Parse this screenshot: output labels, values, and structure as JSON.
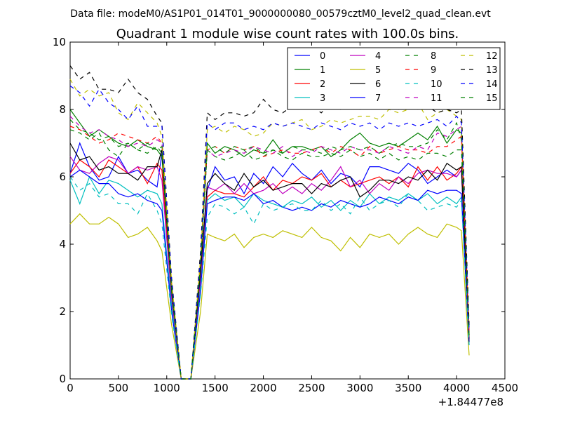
{
  "figure": {
    "suptitle": "Data file: modeM0/AS1P01_014T01_9000000080_00579cztM0_level2_quad_clean.evt"
  },
  "chart_data": {
    "type": "line",
    "title": "Quadrant 1 module wise count rates with 100.0s bins.",
    "xlabel": "",
    "ylabel": "",
    "xlim": [
      0,
      4500
    ],
    "ylim": [
      0,
      10
    ],
    "x_offset_label": "+1.84477e8",
    "xticks": [
      "0",
      "500",
      "1000",
      "1500",
      "2000",
      "2500",
      "3000",
      "3500",
      "4000",
      "4500"
    ],
    "yticks": [
      "0",
      "2",
      "4",
      "6",
      "8",
      "10"
    ],
    "grid": false,
    "legend_position": "top-right",
    "x": [
      0,
      100,
      200,
      300,
      400,
      500,
      600,
      700,
      800,
      900,
      950,
      1050,
      1150,
      1200,
      1250,
      1350,
      1420,
      1500,
      1600,
      1700,
      1800,
      1900,
      2000,
      2100,
      2200,
      2300,
      2400,
      2500,
      2600,
      2700,
      2800,
      2900,
      3000,
      3100,
      3200,
      3300,
      3400,
      3500,
      3600,
      3700,
      3800,
      3900,
      4000,
      4050,
      4130
    ],
    "series": [
      {
        "name": "0",
        "color": "#0000ff",
        "dash": "solid",
        "values": [
          6.1,
          7.0,
          6.3,
          5.9,
          6.0,
          6.6,
          6.1,
          6.2,
          5.9,
          5.7,
          6.7,
          2.4,
          0,
          0,
          0,
          3.0,
          5.6,
          6.3,
          5.9,
          6.0,
          5.5,
          6.1,
          5.8,
          6.3,
          6.0,
          6.4,
          6.1,
          5.9,
          6.2,
          5.8,
          6.1,
          6.0,
          5.7,
          6.3,
          6.3,
          6.2,
          6.1,
          6.4,
          6.2,
          5.8,
          6.0,
          6.2,
          6.0,
          6.2,
          1.2
        ]
      },
      {
        "name": "1",
        "color": "#008000",
        "dash": "solid",
        "values": [
          8.0,
          7.6,
          7.2,
          7.4,
          7.2,
          7.0,
          6.9,
          7.1,
          6.9,
          6.8,
          6.6,
          2.6,
          0,
          0,
          0,
          3.5,
          7.0,
          6.7,
          6.9,
          6.8,
          6.6,
          6.8,
          6.7,
          7.1,
          6.7,
          6.9,
          6.9,
          6.8,
          6.9,
          6.6,
          6.8,
          7.1,
          7.3,
          7.0,
          6.9,
          7.0,
          6.9,
          7.1,
          7.3,
          7.1,
          7.5,
          7.0,
          7.4,
          7.3,
          1.3
        ]
      },
      {
        "name": "2",
        "color": "#ff0000",
        "dash": "solid",
        "values": [
          6.1,
          6.5,
          6.3,
          6.0,
          6.5,
          6.3,
          6.1,
          6.3,
          5.8,
          6.4,
          6.2,
          2.4,
          0,
          0,
          0,
          3.0,
          5.4,
          5.6,
          5.5,
          5.5,
          5.4,
          5.7,
          6.0,
          5.6,
          5.9,
          5.8,
          6.0,
          5.9,
          6.1,
          5.7,
          5.9,
          5.7,
          5.8,
          5.9,
          6.0,
          5.8,
          6.0,
          5.7,
          6.3,
          5.9,
          6.3,
          5.9,
          6.1,
          6.3,
          1.2
        ]
      },
      {
        "name": "3",
        "color": "#00bfbf",
        "dash": "solid",
        "values": [
          5.9,
          5.2,
          6.0,
          5.5,
          5.9,
          5.8,
          5.6,
          5.4,
          5.6,
          5.5,
          5.2,
          2.2,
          0,
          0,
          0,
          2.8,
          5.3,
          5.5,
          5.3,
          5.4,
          5.1,
          5.5,
          5.3,
          5.2,
          5.1,
          5.3,
          5.2,
          5.4,
          5.1,
          5.3,
          5.0,
          5.3,
          5.1,
          5.5,
          5.2,
          5.4,
          5.3,
          5.5,
          5.3,
          5.5,
          5.2,
          5.4,
          5.2,
          5.4,
          1.1
        ]
      },
      {
        "name": "4",
        "color": "#bf00bf",
        "dash": "solid",
        "values": [
          6.6,
          6.2,
          6.1,
          6.4,
          6.6,
          6.5,
          6.1,
          6.3,
          6.2,
          6.3,
          5.9,
          2.4,
          0,
          0,
          0,
          3.0,
          5.7,
          5.6,
          5.8,
          5.5,
          5.8,
          5.5,
          5.6,
          5.8,
          5.5,
          5.7,
          5.5,
          5.8,
          5.6,
          5.9,
          6.3,
          5.7,
          5.9,
          5.5,
          5.8,
          5.6,
          6.0,
          5.8,
          6.1,
          6.2,
          6.1,
          6.1,
          6.0,
          6.2,
          1.2
        ]
      },
      {
        "name": "5",
        "color": "#bfbf00",
        "dash": "solid",
        "values": [
          4.6,
          4.9,
          4.6,
          4.6,
          4.8,
          4.6,
          4.2,
          4.3,
          4.5,
          4.1,
          3.8,
          1.6,
          0,
          0,
          0,
          2.0,
          4.3,
          4.2,
          4.1,
          4.3,
          3.9,
          4.2,
          4.3,
          4.2,
          4.4,
          4.3,
          4.2,
          4.5,
          4.2,
          4.1,
          3.8,
          4.2,
          3.9,
          4.3,
          4.2,
          4.3,
          4.0,
          4.3,
          4.5,
          4.3,
          4.2,
          4.6,
          4.5,
          4.4,
          0.7
        ]
      },
      {
        "name": "6",
        "color": "#000000",
        "dash": "solid",
        "values": [
          7.0,
          6.5,
          6.6,
          6.2,
          6.3,
          6.1,
          6.1,
          5.9,
          6.3,
          6.3,
          6.8,
          2.6,
          0,
          0,
          0,
          3.2,
          5.8,
          6.1,
          5.8,
          5.6,
          6.1,
          5.7,
          5.9,
          5.6,
          5.7,
          5.8,
          5.8,
          5.5,
          5.8,
          5.7,
          5.9,
          6.0,
          5.4,
          5.6,
          5.9,
          5.9,
          5.8,
          6.0,
          5.9,
          6.2,
          5.9,
          6.4,
          6.2,
          6.3,
          1.1
        ]
      },
      {
        "name": "7",
        "color": "#0000ff",
        "dash": "solid",
        "values": [
          6.0,
          6.2,
          6.0,
          5.8,
          5.8,
          5.5,
          5.4,
          5.5,
          5.3,
          5.2,
          5.0,
          2.0,
          0,
          0,
          0,
          2.6,
          5.2,
          5.3,
          5.4,
          5.4,
          5.3,
          5.5,
          5.2,
          5.3,
          5.1,
          5.0,
          5.1,
          5.0,
          5.2,
          5.1,
          5.3,
          5.2,
          5.1,
          5.2,
          5.4,
          5.3,
          5.2,
          5.4,
          5.3,
          5.6,
          5.5,
          5.6,
          5.6,
          5.5,
          1.0
        ]
      },
      {
        "name": "8",
        "color": "#008000",
        "dash": "dashed",
        "values": [
          7.4,
          7.3,
          7.1,
          7.3,
          6.8,
          6.6,
          7.0,
          6.8,
          6.7,
          6.9,
          6.7,
          2.6,
          0,
          0,
          0,
          3.4,
          6.8,
          6.6,
          6.5,
          6.6,
          6.8,
          6.5,
          6.6,
          6.8,
          6.6,
          6.5,
          6.7,
          6.6,
          6.6,
          6.7,
          6.6,
          6.8,
          6.6,
          6.7,
          6.5,
          6.7,
          6.5,
          6.6,
          6.5,
          6.7,
          6.7,
          6.6,
          6.8,
          6.8,
          1.3
        ]
      },
      {
        "name": "9",
        "color": "#ff0000",
        "dash": "dashed",
        "values": [
          7.5,
          7.4,
          7.2,
          7.0,
          7.1,
          7.3,
          7.2,
          7.1,
          7.0,
          7.2,
          7.0,
          2.8,
          0,
          0,
          0,
          3.5,
          6.8,
          6.9,
          6.7,
          6.9,
          6.8,
          6.9,
          6.6,
          6.7,
          6.8,
          6.7,
          6.7,
          6.8,
          6.9,
          6.7,
          6.9,
          6.8,
          6.6,
          6.9,
          6.7,
          6.8,
          6.9,
          6.8,
          6.8,
          6.7,
          6.9,
          6.9,
          7.1,
          7.2,
          1.4
        ]
      },
      {
        "name": "10",
        "color": "#00bfbf",
        "dash": "dashed",
        "values": [
          6.0,
          5.6,
          5.8,
          5.4,
          5.5,
          5.2,
          5.2,
          4.9,
          5.5,
          5.0,
          4.6,
          1.9,
          0,
          0,
          0,
          2.5,
          4.8,
          5.2,
          5.1,
          4.9,
          5.1,
          4.6,
          5.2,
          5.0,
          5.1,
          5.2,
          5.0,
          5.0,
          5.3,
          5.0,
          5.2,
          4.9,
          5.4,
          5.0,
          5.2,
          5.3,
          5.1,
          5.5,
          5.3,
          5.0,
          5.1,
          5.2,
          5.1,
          5.3,
          1.0
        ]
      },
      {
        "name": "11",
        "color": "#bf00bf",
        "dash": "dashed",
        "values": [
          7.8,
          7.5,
          7.3,
          7.4,
          7.2,
          7.1,
          6.9,
          7.0,
          6.9,
          7.1,
          7.0,
          2.8,
          0,
          0,
          0,
          3.5,
          6.8,
          6.6,
          6.7,
          6.8,
          6.7,
          6.9,
          6.8,
          6.7,
          6.9,
          6.6,
          6.8,
          6.7,
          6.9,
          6.8,
          6.7,
          6.9,
          6.8,
          6.8,
          6.7,
          6.9,
          6.8,
          6.7,
          6.9,
          6.8,
          7.3,
          7.2,
          7.4,
          7.5,
          1.4
        ]
      },
      {
        "name": "12",
        "color": "#bfbf00",
        "dash": "dashed",
        "values": [
          8.9,
          8.4,
          8.6,
          8.4,
          8.5,
          7.9,
          7.7,
          8.2,
          7.9,
          7.6,
          7.2,
          2.9,
          0,
          0,
          0,
          3.6,
          7.4,
          7.5,
          7.3,
          7.5,
          7.4,
          7.2,
          7.3,
          7.6,
          7.5,
          7.6,
          7.7,
          7.4,
          7.5,
          7.7,
          7.6,
          7.7,
          7.8,
          7.8,
          7.7,
          8.0,
          7.9,
          8.0,
          8.2,
          7.7,
          7.9,
          8.0,
          7.8,
          7.7,
          1.5
        ]
      },
      {
        "name": "13",
        "color": "#000000",
        "dash": "dashed",
        "values": [
          9.3,
          8.9,
          9.1,
          8.6,
          8.6,
          8.5,
          8.9,
          8.5,
          8.3,
          7.8,
          7.6,
          3.0,
          0,
          0,
          0,
          3.8,
          7.9,
          7.7,
          7.9,
          7.9,
          7.8,
          7.9,
          8.3,
          8.0,
          7.9,
          8.1,
          8.0,
          8.1,
          7.9,
          8.2,
          8.0,
          8.2,
          8.0,
          8.2,
          8.0,
          8.1,
          8.0,
          8.2,
          8.0,
          8.1,
          7.9,
          8.0,
          7.9,
          8.0,
          1.6
        ]
      },
      {
        "name": "14",
        "color": "#0000ff",
        "dash": "dashed",
        "values": [
          8.7,
          8.5,
          8.1,
          8.6,
          8.2,
          8.0,
          7.7,
          8.1,
          7.5,
          7.5,
          7.5,
          2.9,
          0,
          0,
          0,
          3.6,
          7.6,
          7.4,
          7.6,
          7.6,
          7.4,
          7.5,
          7.4,
          7.6,
          7.5,
          7.6,
          7.5,
          7.4,
          7.6,
          7.5,
          7.4,
          7.6,
          7.5,
          7.6,
          7.4,
          7.6,
          7.5,
          7.6,
          7.5,
          7.6,
          7.7,
          7.5,
          7.8,
          7.6,
          1.5
        ]
      },
      {
        "name": "15",
        "color": "#008000",
        "dash": "dashed",
        "values": [
          7.7,
          7.4,
          7.3,
          7.1,
          7.2,
          6.9,
          7.0,
          6.8,
          7.0,
          6.8,
          6.9,
          2.7,
          0,
          0,
          0,
          3.4,
          6.8,
          6.9,
          6.7,
          6.9,
          6.8,
          6.9,
          6.7,
          6.8,
          6.7,
          6.9,
          6.8,
          6.8,
          6.7,
          6.9,
          6.8,
          6.9,
          6.8,
          6.9,
          6.7,
          6.9,
          7.0,
          6.9,
          6.9,
          7.0,
          7.4,
          7.1,
          7.6,
          7.1,
          1.3
        ]
      }
    ]
  }
}
